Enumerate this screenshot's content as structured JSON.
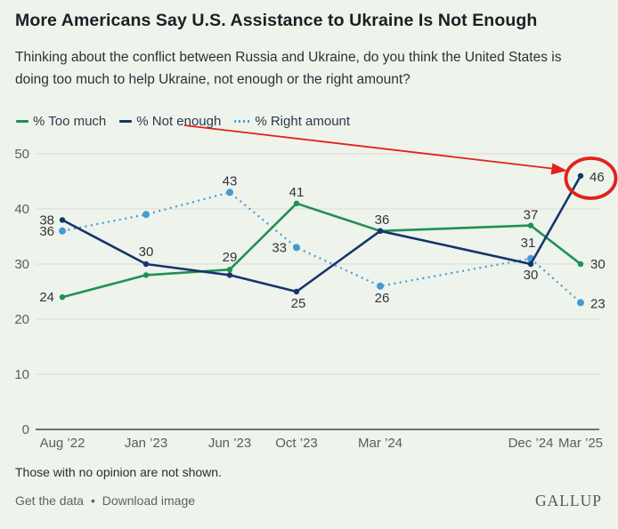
{
  "header": {
    "title": "More Americans Say U.S. Assistance to Ukraine Is Not Enough",
    "subtitle_line1": "Thinking about the conflict between Russia and Ukraine, do you think the United States is",
    "subtitle_line2": "doing too much to help Ukraine, not enough or the right amount?"
  },
  "legend": {
    "items": [
      {
        "label": "% Too much",
        "color": "#1f9153",
        "style": "solid"
      },
      {
        "label": "% Not enough",
        "color": "#16356b",
        "style": "solid"
      },
      {
        "label": "% Right amount",
        "color": "#449bd2",
        "style": "dotted"
      }
    ]
  },
  "chart_data": {
    "type": "line",
    "x": [
      "Aug ’22",
      "Jan ’23",
      "Jun ’23",
      "Oct ’23",
      "Mar ’24",
      "Dec ’24",
      "Mar ’25"
    ],
    "series": [
      {
        "name": "% Too much",
        "color": "#1f9153",
        "style": "solid",
        "values": [
          24,
          28,
          29,
          41,
          36,
          37,
          30
        ]
      },
      {
        "name": "% Not enough",
        "color": "#16356b",
        "style": "solid",
        "values": [
          38,
          30,
          28,
          25,
          36,
          30,
          46
        ]
      },
      {
        "name": "% Right amount",
        "color": "#449bd2",
        "style": "dotted",
        "values": [
          36,
          39,
          43,
          33,
          26,
          31,
          23
        ]
      }
    ],
    "shown_point_labels": {
      "% Too much": [
        24,
        null,
        29,
        41,
        null,
        37,
        30
      ],
      "% Not enough": [
        38,
        30,
        null,
        25,
        36,
        30,
        46
      ],
      "% Right amount": [
        36,
        null,
        43,
        33,
        26,
        31,
        23
      ]
    },
    "ylim": [
      0,
      50
    ],
    "yticks": [
      0,
      10,
      20,
      30,
      40,
      50
    ],
    "grid": "horizontal",
    "legend_position": "top",
    "annotation": {
      "type": "arrow-and-circle",
      "highlighted_series": "% Not enough",
      "highlighted_category": "Mar ’25",
      "highlighted_value": 46,
      "color": "#e2211c"
    }
  },
  "footnote": "Those with no opinion are not shown.",
  "footer": {
    "link1": "Get the data",
    "separator": "•",
    "link2": "Download image",
    "brand": "GALLUP"
  }
}
